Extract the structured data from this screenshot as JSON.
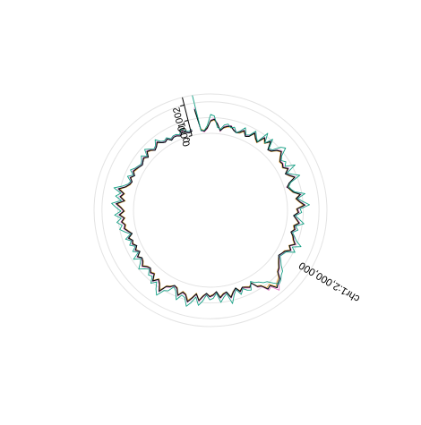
{
  "chart_data": {
    "type": "line",
    "subtype": "circular",
    "title": "",
    "xlabel": "",
    "ylabel": "",
    "sector_label": "chr1:2,000,000",
    "ylim": [
      0,
      0.0025
    ],
    "y_ticks": [
      0,
      0.001,
      0.002
    ],
    "y_tick_labels": [
      "0",
      "0.001",
      "0.002"
    ],
    "grid": true,
    "legend": "none",
    "series_colors": [
      "#1f8ac0",
      "#e8a33d",
      "#e377c2",
      "#7e57c2",
      "#26a69a",
      "#000000",
      "#16a085"
    ],
    "series_values": [
      [
        0.0016,
        0.00025,
        0.00015,
        0.00035,
        0.0008,
        0.0009,
        0.0006,
        0.0002,
        0.00045,
        0.00055,
        0.0006,
        0.0004,
        0.0003,
        0.0004,
        0.0006,
        0.0003,
        0.0004,
        0.00075,
        0.0005,
        0.00035,
        0.00085,
        0.0006,
        0.0009,
        0.0004,
        0.0005,
        0.0008,
        0.00095,
        0.0007,
        0.0005,
        0.00055,
        0.00045,
        0.0007,
        0.0004,
        0.0006,
        0.00085,
        0.0004,
        0.0002,
        0.00035,
        0.0005,
        0.0009,
        0.0006,
        0.0008,
        0.0011,
        0.0006,
        0.0007,
        0.0004,
        0.0006,
        0.0008,
        0.0005,
        0.0006,
        0.0004,
        0.0006,
        0.0007,
        0.0009,
        0.0006,
        0.0008,
        0.0005,
        0.0004,
        0.0003,
        0.00045,
        0.0006,
        0.0008,
        0.0009,
        0.0013,
        0.0014,
        0.0016,
        0.0012,
        0.0013,
        0.0009,
        0.0008,
        0.0004,
        0.0006,
        0.0005,
        0.0004,
        0.0006,
        0.0003,
        0.0005,
        0.0008,
        0.0004,
        0.0005,
        0.0007,
        0.0003,
        0.0005,
        0.0006,
        0.0004,
        0.0006,
        0.0009,
        0.0005,
        0.0008,
        0.0011,
        0.0007,
        0.0006,
        0.0009,
        0.0005,
        0.0004,
        0.0006,
        0.0007,
        0.0012,
        0.0008,
        0.0006,
        0.0009,
        0.0005,
        0.0006,
        0.0004,
        0.0005,
        0.0007,
        0.0005,
        0.0004,
        0.0006,
        0.0003,
        0.0005,
        0.0003,
        0.0005,
        0.0004,
        0.0006,
        0.0003,
        0.0005,
        0.0007,
        0.0006,
        0.0008,
        0.0006,
        0.0009,
        0.0006,
        0.0008,
        0.0011,
        0.0006,
        0.0009,
        0.0007,
        0.0011,
        0.0007,
        0.0005,
        0.0004,
        0.0006,
        0.0004,
        0.0006,
        0.0005,
        0.0004,
        0.0003,
        0.0004,
        0.0005,
        0.0003,
        0.0006,
        0.0005,
        0.0003,
        0.0004,
        0.0006,
        0.0004,
        0.0003,
        0.0004,
        0.0002,
        0.0003,
        0.0003,
        0.0002,
        0.0004,
        0.0003,
        0.0002,
        0.0003
      ],
      [
        0.0015,
        0.0003,
        0.0002,
        0.0004,
        0.00075,
        0.00085,
        0.00055,
        0.00025,
        0.0004,
        0.0005,
        0.00055,
        0.0004,
        0.0003,
        0.00035,
        0.00055,
        0.0003,
        0.0004,
        0.0007,
        0.00045,
        0.0003,
        0.0008,
        0.00055,
        0.00085,
        0.0004,
        0.00045,
        0.00075,
        0.0009,
        0.00065,
        0.00045,
        0.0005,
        0.0004,
        0.00065,
        0.0004,
        0.00055,
        0.0008,
        0.0004,
        0.00025,
        0.0003,
        0.00045,
        0.00085,
        0.00055,
        0.00075,
        0.001,
        0.00055,
        0.00065,
        0.0004,
        0.00055,
        0.00075,
        0.00045,
        0.00055,
        0.0004,
        0.00055,
        0.00065,
        0.00085,
        0.00055,
        0.00075,
        0.00045,
        0.0004,
        0.0003,
        0.0004,
        0.00055,
        0.00075,
        0.00085,
        0.0012,
        0.0013,
        0.0015,
        0.0011,
        0.0012,
        0.00085,
        0.00075,
        0.0004,
        0.00055,
        0.00045,
        0.0004,
        0.00055,
        0.0003,
        0.00045,
        0.00075,
        0.0004,
        0.00045,
        0.00065,
        0.0003,
        0.00045,
        0.00055,
        0.0004,
        0.00055,
        0.00085,
        0.00045,
        0.00075,
        0.001,
        0.00065,
        0.00055,
        0.00085,
        0.00045,
        0.0004,
        0.00055,
        0.00065,
        0.0011,
        0.00075,
        0.00055,
        0.00085,
        0.00045,
        0.00055,
        0.0004,
        0.00045,
        0.00065,
        0.00045,
        0.0004,
        0.00055,
        0.0003,
        0.00045,
        0.0003,
        0.00045,
        0.0004,
        0.00055,
        0.0003,
        0.00045,
        0.00065,
        0.00055,
        0.00075,
        0.00055,
        0.00085,
        0.00055,
        0.00075,
        0.001,
        0.00055,
        0.00085,
        0.00065,
        0.001,
        0.00065,
        0.00045,
        0.0004,
        0.00055,
        0.0004,
        0.00055,
        0.00045,
        0.0004,
        0.0003,
        0.0004,
        0.00045,
        0.0003,
        0.00055,
        0.00045,
        0.0003,
        0.0004,
        0.00055,
        0.0004,
        0.0003,
        0.0004,
        0.00025,
        0.0003,
        0.0003,
        0.00025,
        0.0004,
        0.0003,
        0.00025,
        0.0003
      ],
      [
        0.0017,
        0.0002,
        0.0001,
        0.0003,
        0.00085,
        0.00095,
        0.00065,
        0.00015,
        0.0005,
        0.0006,
        0.00065,
        0.00045,
        0.00035,
        0.00045,
        0.00065,
        0.00035,
        0.00045,
        0.0008,
        0.00055,
        0.0004,
        0.0009,
        0.00065,
        0.00095,
        0.00045,
        0.00055,
        0.00085,
        0.001,
        0.00075,
        0.00055,
        0.0006,
        0.0005,
        0.00075,
        0.00045,
        0.00065,
        0.0009,
        0.00045,
        0.00015,
        0.0004,
        0.00055,
        0.00095,
        0.00065,
        0.00085,
        0.00115,
        0.00065,
        0.00075,
        0.00045,
        0.00065,
        0.00085,
        0.00055,
        0.00065,
        0.00045,
        0.00065,
        0.00075,
        0.00095,
        0.00065,
        0.00085,
        0.00055,
        0.00045,
        0.00035,
        0.0005,
        0.00065,
        0.00085,
        0.00095,
        0.0014,
        0.0015,
        0.0018,
        0.0013,
        0.0014,
        0.00095,
        0.00085,
        0.00045,
        0.00065,
        0.00055,
        0.00045,
        0.00065,
        0.00035,
        0.00055,
        0.00085,
        0.00045,
        0.00055,
        0.00075,
        0.00035,
        0.00055,
        0.00065,
        0.00045,
        0.00065,
        0.00095,
        0.00055,
        0.00085,
        0.00115,
        0.00075,
        0.00065,
        0.00095,
        0.00055,
        0.00045,
        0.00065,
        0.00075,
        0.00125,
        0.00085,
        0.00065,
        0.00095,
        0.00055,
        0.00065,
        0.00045,
        0.00055,
        0.00075,
        0.00055,
        0.00045,
        0.00065,
        0.00035,
        0.00055,
        0.00035,
        0.00055,
        0.00045,
        0.00065,
        0.00035,
        0.00055,
        0.00075,
        0.00065,
        0.00085,
        0.00065,
        0.00095,
        0.00065,
        0.00085,
        0.00115,
        0.00065,
        0.00095,
        0.00075,
        0.00115,
        0.00075,
        0.00055,
        0.00045,
        0.00065,
        0.00045,
        0.00065,
        0.00055,
        0.00045,
        0.00035,
        0.00045,
        0.00055,
        0.00035,
        0.00065,
        0.00055,
        0.00035,
        0.00045,
        0.00065,
        0.00045,
        0.00035,
        0.00045,
        0.00025,
        0.00035,
        0.00035,
        0.00025,
        0.00045,
        0.00035,
        0.00025,
        0.00035
      ],
      [
        0.0016,
        0.00025,
        0.00015,
        0.00035,
        0.0008,
        0.0009,
        0.0006,
        0.0002,
        0.00045,
        0.00055,
        0.0006,
        0.0004,
        0.0003,
        0.0004,
        0.0006,
        0.0003,
        0.0004,
        0.00075,
        0.0005,
        0.00035,
        0.00085,
        0.0006,
        0.0009,
        0.0004,
        0.0005,
        0.0008,
        0.00095,
        0.0007,
        0.0005,
        0.00055,
        0.00045,
        0.0007,
        0.0004,
        0.0006,
        0.00085,
        0.0004,
        0.0002,
        0.00035,
        0.0005,
        0.0009,
        0.0006,
        0.0008,
        0.0011,
        0.0006,
        0.0007,
        0.0004,
        0.0006,
        0.0008,
        0.0005,
        0.0006,
        0.0004,
        0.0006,
        0.0007,
        0.0009,
        0.0006,
        0.0008,
        0.0005,
        0.0004,
        0.0003,
        0.00045,
        0.0006,
        0.0008,
        0.0009,
        0.0013,
        0.0014,
        0.0016,
        0.0012,
        0.0013,
        0.0009,
        0.0008,
        0.0004,
        0.0006,
        0.0005,
        0.0004,
        0.0006,
        0.0003,
        0.0005,
        0.0008,
        0.0004,
        0.0005,
        0.0007,
        0.0003,
        0.0005,
        0.0006,
        0.0004,
        0.0006,
        0.0009,
        0.0005,
        0.0008,
        0.0011,
        0.0007,
        0.0006,
        0.0009,
        0.0005,
        0.0004,
        0.0006,
        0.0007,
        0.0012,
        0.0008,
        0.0006,
        0.0009,
        0.0005,
        0.0006,
        0.0004,
        0.0005,
        0.0007,
        0.0005,
        0.0004,
        0.0006,
        0.0003,
        0.0005,
        0.0003,
        0.0005,
        0.0004,
        0.0006,
        0.0003,
        0.0005,
        0.0007,
        0.0006,
        0.0008,
        0.0006,
        0.0009,
        0.0006,
        0.0008,
        0.0011,
        0.0006,
        0.0009,
        0.0007,
        0.0011,
        0.0007,
        0.0005,
        0.0004,
        0.0006,
        0.0004,
        0.0006,
        0.0005,
        0.0004,
        0.0003,
        0.0004,
        0.0005,
        0.0003,
        0.0006,
        0.0005,
        0.0003,
        0.0004,
        0.0006,
        0.0004,
        0.0003,
        0.0004,
        0.0002,
        0.0003,
        0.0003,
        0.0002,
        0.0004,
        0.0003,
        0.0002,
        0.0003
      ],
      [
        0.0016,
        0.00025,
        0.00015,
        0.00035,
        0.0008,
        0.0009,
        0.0006,
        0.0002,
        0.00045,
        0.00055,
        0.0006,
        0.0004,
        0.0003,
        0.0004,
        0.0006,
        0.0003,
        0.0004,
        0.00075,
        0.0005,
        0.00035,
        0.00085,
        0.0006,
        0.0009,
        0.0004,
        0.0005,
        0.0008,
        0.00095,
        0.0007,
        0.0005,
        0.00055,
        0.00045,
        0.0007,
        0.0004,
        0.0006,
        0.00085,
        0.0004,
        0.0002,
        0.00035,
        0.0005,
        0.0009,
        0.0006,
        0.0008,
        0.0011,
        0.0006,
        0.0007,
        0.0004,
        0.0006,
        0.0008,
        0.0005,
        0.0006,
        0.0004,
        0.0006,
        0.0007,
        0.0009,
        0.0006,
        0.0008,
        0.0005,
        0.0004,
        0.0003,
        0.00045,
        0.0006,
        0.0008,
        0.0009,
        0.0013,
        0.0014,
        0.0016,
        0.0012,
        0.0013,
        0.0009,
        0.0008,
        0.0004,
        0.0006,
        0.0005,
        0.0004,
        0.0006,
        0.0003,
        0.0005,
        0.0008,
        0.0004,
        0.0005,
        0.0007,
        0.0003,
        0.0005,
        0.0006,
        0.0004,
        0.0006,
        0.0009,
        0.0005,
        0.0008,
        0.0011,
        0.0007,
        0.0006,
        0.0009,
        0.0005,
        0.0004,
        0.0006,
        0.0007,
        0.0012,
        0.0008,
        0.0006,
        0.0009,
        0.0005,
        0.0006,
        0.0004,
        0.0005,
        0.0007,
        0.0005,
        0.0004,
        0.0006,
        0.0003,
        0.0005,
        0.0003,
        0.0005,
        0.0004,
        0.0006,
        0.0003,
        0.0005,
        0.0007,
        0.0006,
        0.0008,
        0.0006,
        0.0009,
        0.0006,
        0.0008,
        0.0011,
        0.0006,
        0.0009,
        0.0007,
        0.0011,
        0.0007,
        0.0005,
        0.0004,
        0.0006,
        0.0004,
        0.0006,
        0.0005,
        0.0004,
        0.0003,
        0.0004,
        0.0005,
        0.0003,
        0.0006,
        0.0005,
        0.0003,
        0.0004,
        0.0006,
        0.0004,
        0.0003,
        0.0004,
        0.0002,
        0.0003,
        0.0003,
        0.0002,
        0.0004,
        0.0003,
        0.0002,
        0.0003
      ],
      [
        0.0016,
        0.00025,
        0.00015,
        0.00035,
        0.0008,
        0.0009,
        0.0006,
        0.0002,
        0.00045,
        0.00055,
        0.0006,
        0.0004,
        0.0003,
        0.0004,
        0.0006,
        0.0003,
        0.0004,
        0.00075,
        0.0005,
        0.00035,
        0.00085,
        0.0006,
        0.0009,
        0.0004,
        0.0005,
        0.0008,
        0.00095,
        0.0007,
        0.0005,
        0.00055,
        0.00045,
        0.0007,
        0.0004,
        0.0006,
        0.00085,
        0.0004,
        0.0002,
        0.00035,
        0.0005,
        0.0009,
        0.0006,
        0.0008,
        0.0011,
        0.0006,
        0.0007,
        0.0004,
        0.0006,
        0.0008,
        0.0005,
        0.0006,
        0.0004,
        0.0006,
        0.0007,
        0.0009,
        0.0006,
        0.0008,
        0.0005,
        0.0004,
        0.0003,
        0.00045,
        0.0006,
        0.0008,
        0.0009,
        0.0013,
        0.0014,
        0.0016,
        0.0012,
        0.0013,
        0.0009,
        0.0008,
        0.0004,
        0.0006,
        0.0005,
        0.0004,
        0.0006,
        0.0003,
        0.0005,
        0.0008,
        0.0004,
        0.0005,
        0.0007,
        0.0003,
        0.0005,
        0.0006,
        0.0004,
        0.0006,
        0.0009,
        0.0005,
        0.0008,
        0.0011,
        0.0007,
        0.0006,
        0.0009,
        0.0005,
        0.0004,
        0.0006,
        0.0007,
        0.0012,
        0.0008,
        0.0006,
        0.0009,
        0.0005,
        0.0006,
        0.0004,
        0.0005,
        0.0007,
        0.0005,
        0.0004,
        0.0006,
        0.0003,
        0.0005,
        0.0003,
        0.0005,
        0.0004,
        0.0006,
        0.0003,
        0.0005,
        0.0007,
        0.0006,
        0.0008,
        0.0006,
        0.0009,
        0.0006,
        0.0008,
        0.0011,
        0.0006,
        0.0009,
        0.0007,
        0.0011,
        0.0007,
        0.0005,
        0.0004,
        0.0006,
        0.0004,
        0.0006,
        0.0005,
        0.0004,
        0.0003,
        0.0004,
        0.0005,
        0.0003,
        0.0006,
        0.0005,
        0.0003,
        0.0004,
        0.0006,
        0.0004,
        0.0003,
        0.0004,
        0.0002,
        0.0003,
        0.0003,
        0.0002,
        0.0004,
        0.0003,
        0.0002,
        0.0003
      ],
      [
        0.0025,
        0.0002,
        0.0002,
        0.0005,
        0.0012,
        0.0011,
        0.0004,
        0.0003,
        0.0006,
        0.0007,
        0.0005,
        0.0006,
        0.0003,
        0.0005,
        0.0008,
        0.0004,
        0.0005,
        0.0009,
        0.0006,
        0.0004,
        0.0012,
        0.0006,
        0.0011,
        0.0005,
        0.0006,
        0.0011,
        0.0013,
        0.0008,
        0.0006,
        0.0008,
        0.0006,
        0.0012,
        0.0005,
        0.0008,
        0.0012,
        0.0005,
        0.0003,
        0.0004,
        0.0006,
        0.0012,
        0.0007,
        0.001,
        0.0014,
        0.0008,
        0.0009,
        0.0005,
        0.0008,
        0.0011,
        0.0006,
        0.0008,
        0.0005,
        0.0007,
        0.0009,
        0.0013,
        0.0008,
        0.0011,
        0.0006,
        0.0005,
        0.0004,
        0.0006,
        0.0008,
        0.0011,
        0.0012,
        0.0014,
        0.0015,
        0.0012,
        0.0009,
        0.0008,
        0.0006,
        0.0005,
        0.0003,
        0.0008,
        0.0007,
        0.0005,
        0.0008,
        0.0004,
        0.0007,
        0.0012,
        0.0005,
        0.0007,
        0.001,
        0.0004,
        0.0007,
        0.0008,
        0.0005,
        0.0009,
        0.0012,
        0.0007,
        0.0011,
        0.0014,
        0.0009,
        0.0008,
        0.0012,
        0.0007,
        0.0005,
        0.0009,
        0.001,
        0.0015,
        0.0012,
        0.0008,
        0.0011,
        0.0007,
        0.0008,
        0.0005,
        0.0007,
        0.001,
        0.0007,
        0.0005,
        0.0009,
        0.0004,
        0.0007,
        0.0004,
        0.0007,
        0.0005,
        0.0008,
        0.0004,
        0.0007,
        0.001,
        0.0008,
        0.0011,
        0.0008,
        0.0012,
        0.0008,
        0.0011,
        0.0014,
        0.0008,
        0.0012,
        0.0009,
        0.0014,
        0.0009,
        0.0006,
        0.0005,
        0.0008,
        0.0005,
        0.0008,
        0.0006,
        0.0005,
        0.0004,
        0.0005,
        0.0007,
        0.0004,
        0.0008,
        0.0006,
        0.0004,
        0.0005,
        0.0008,
        0.0005,
        0.0004,
        0.0005,
        0.0003,
        0.0004,
        0.0004,
        0.0003,
        0.0006,
        0.0004,
        0.0003,
        0.0004
      ]
    ]
  }
}
